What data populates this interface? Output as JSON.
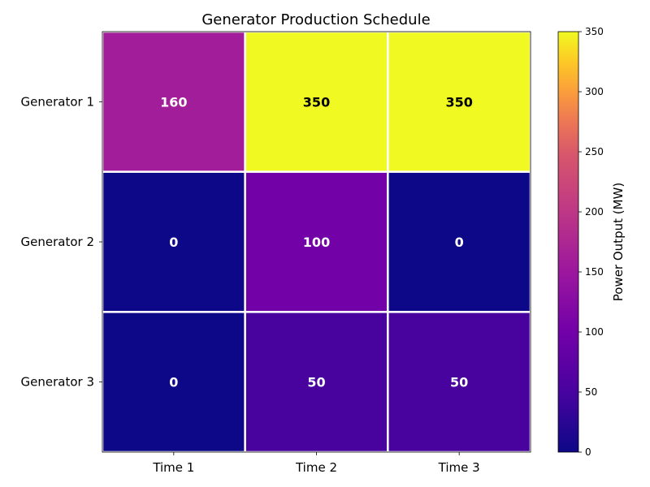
{
  "chart_data": {
    "type": "heatmap",
    "title": "Generator Production Schedule",
    "rows": [
      "Generator 1",
      "Generator 2",
      "Generator 3"
    ],
    "columns": [
      "Time 1",
      "Time 2",
      "Time 3"
    ],
    "values": [
      [
        160,
        350,
        350
      ],
      [
        0,
        100,
        0
      ],
      [
        0,
        50,
        50
      ]
    ],
    "colormap": "plasma",
    "vmin": 0,
    "vmax": 350,
    "colorbar": {
      "label": "Power Output (MW)",
      "ticks": [
        0,
        50,
        100,
        150,
        200,
        250,
        300,
        350
      ]
    }
  }
}
